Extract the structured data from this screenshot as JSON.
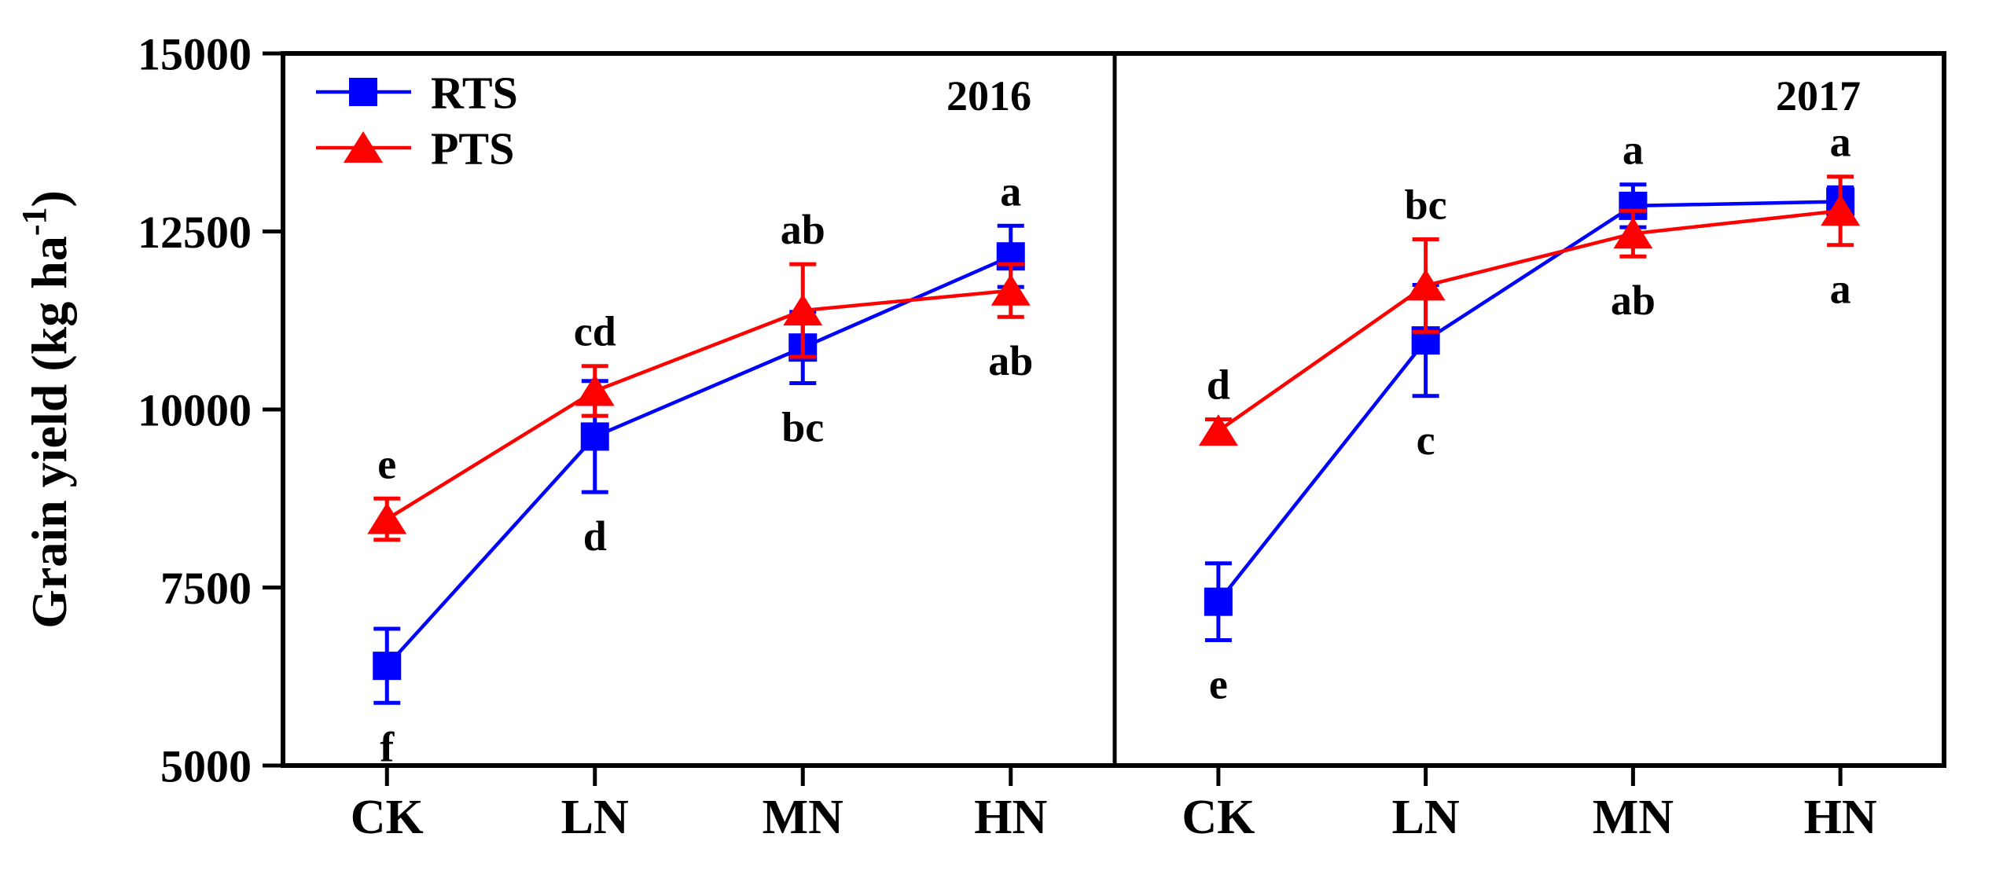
{
  "chart_data": {
    "type": "line",
    "ylabel_base": "Grain yield (kg ha",
    "ylabel_sup": "-1",
    "ylabel_close": ")",
    "ylim": [
      5000,
      15000
    ],
    "yticks": [
      "5000",
      "7500",
      "10000",
      "12500",
      "15000"
    ],
    "ytick_values": [
      5000,
      7500,
      10000,
      12500,
      15000
    ],
    "categories": [
      "CK",
      "LN",
      "MN",
      "HN"
    ],
    "grid": "off",
    "legend_position": "top-left",
    "legend": [
      {
        "label": "RTS",
        "color": "#0000ff",
        "marker": "square"
      },
      {
        "label": "PTS",
        "color": "#ff0000",
        "marker": "triangle"
      }
    ],
    "colors": {
      "rts": "#0000ff",
      "pts": "#ff0000",
      "axis": "#000000",
      "background": "#ffffff"
    },
    "panels": [
      {
        "year": "2016",
        "series": [
          {
            "name": "RTS",
            "color": "#0000ff",
            "marker": "square",
            "values": [
              6400,
              9620,
              10870,
              12150
            ],
            "errors": [
              520,
              780,
              500,
              430
            ],
            "letters": [
              "f",
              "d",
              "bc",
              "a"
            ],
            "letter_pos": [
              "below",
              "below",
              "below",
              "above"
            ]
          },
          {
            "name": "PTS",
            "color": "#ff0000",
            "marker": "triangle",
            "values": [
              8460,
              10260,
              11390,
              11670
            ],
            "errors": [
              290,
              350,
              650,
              370
            ],
            "letters": [
              "e",
              "cd",
              "ab",
              "ab"
            ],
            "letter_pos": [
              "above",
              "above",
              "above",
              "below"
            ]
          }
        ]
      },
      {
        "year": "2017",
        "series": [
          {
            "name": "RTS",
            "color": "#0000ff",
            "marker": "square",
            "values": [
              7300,
              10970,
              12860,
              12920
            ],
            "errors": [
              540,
              780,
              300,
              200
            ],
            "letters": [
              "e",
              "c",
              "a",
              "a"
            ],
            "letter_pos": [
              "below",
              "below",
              "above",
              "above"
            ]
          },
          {
            "name": "PTS",
            "color": "#ff0000",
            "marker": "triangle",
            "values": [
              9700,
              11740,
              12470,
              12790
            ],
            "errors": [
              160,
              650,
              320,
              480
            ],
            "letters": [
              "d",
              "bc",
              "ab",
              "a"
            ],
            "letter_pos": [
              "above",
              "above",
              "below",
              "below"
            ]
          }
        ]
      }
    ]
  }
}
